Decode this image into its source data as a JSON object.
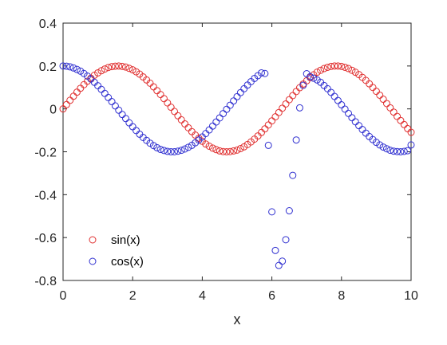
{
  "chart_data": {
    "type": "scatter",
    "xlabel": "x",
    "ylabel": "",
    "xlim": [
      0,
      10
    ],
    "ylim": [
      -0.8,
      0.4
    ],
    "xticks": [
      0,
      2,
      4,
      6,
      8,
      10
    ],
    "yticks": [
      -0.8,
      -0.6,
      -0.4,
      -0.2,
      0,
      0.2,
      0.4
    ],
    "xtick_labels": [
      "0",
      "2",
      "4",
      "6",
      "8",
      "10"
    ],
    "ytick_labels": [
      "-0.8",
      "-0.6",
      "-0.4",
      "-0.2",
      "0",
      "0.2",
      "0.4"
    ],
    "grid": false,
    "legend_position": "bottom-left",
    "marker": "open-circle",
    "series": [
      {
        "name": "sin(x)",
        "color": "#e03030",
        "x": [
          0,
          0.1,
          0.2,
          0.3,
          0.4,
          0.5,
          0.6,
          0.7,
          0.8,
          0.9,
          1,
          1.1,
          1.2,
          1.3,
          1.4,
          1.5,
          1.6,
          1.7,
          1.8,
          1.9,
          2,
          2.1,
          2.2,
          2.3,
          2.4,
          2.5,
          2.6,
          2.7,
          2.8,
          2.9,
          3,
          3.1,
          3.2,
          3.3,
          3.4,
          3.5,
          3.6,
          3.7,
          3.8,
          3.9,
          4,
          4.1,
          4.2,
          4.3,
          4.4,
          4.5,
          4.6,
          4.7,
          4.8,
          4.9,
          5,
          5.1,
          5.2,
          5.3,
          5.4,
          5.5,
          5.6,
          5.7,
          5.8,
          5.9,
          6,
          6.1,
          6.2,
          6.3,
          6.4,
          6.5,
          6.6,
          6.7,
          6.8,
          6.9,
          7,
          7.1,
          7.2,
          7.3,
          7.4,
          7.5,
          7.6,
          7.7,
          7.8,
          7.9,
          8,
          8.1,
          8.2,
          8.3,
          8.4,
          8.5,
          8.6,
          8.7,
          8.8,
          8.9,
          9,
          9.1,
          9.2,
          9.3,
          9.4,
          9.5,
          9.6,
          9.7,
          9.8,
          9.9,
          10
        ],
        "y": [
          0.0,
          0.02,
          0.04,
          0.059,
          0.078,
          0.096,
          0.113,
          0.129,
          0.143,
          0.157,
          0.168,
          0.178,
          0.186,
          0.193,
          0.197,
          0.199,
          0.2,
          0.198,
          0.195,
          0.189,
          0.182,
          0.173,
          0.162,
          0.149,
          0.135,
          0.12,
          0.103,
          0.085,
          0.067,
          0.048,
          0.028,
          0.008,
          -0.012,
          -0.032,
          -0.051,
          -0.07,
          -0.088,
          -0.106,
          -0.122,
          -0.137,
          -0.151,
          -0.164,
          -0.174,
          -0.183,
          -0.19,
          -0.196,
          -0.199,
          -0.2,
          -0.199,
          -0.196,
          -0.192,
          -0.185,
          -0.177,
          -0.166,
          -0.154,
          -0.141,
          -0.126,
          -0.11,
          -0.093,
          -0.075,
          -0.056,
          -0.037,
          -0.017,
          0.003,
          0.023,
          0.043,
          0.062,
          0.081,
          0.099,
          0.116,
          0.131,
          0.146,
          0.159,
          0.171,
          0.18,
          0.188,
          0.194,
          0.198,
          0.2,
          0.2,
          0.198,
          0.194,
          0.188,
          0.18,
          0.171,
          0.16,
          0.147,
          0.133,
          0.117,
          0.1,
          0.082,
          0.064,
          0.045,
          0.025,
          0.005,
          -0.015,
          -0.035,
          -0.054,
          -0.073,
          -0.092,
          -0.109
        ]
      },
      {
        "name": "cos(x)",
        "color": "#3030d0",
        "x": [
          0,
          0.1,
          0.2,
          0.3,
          0.4,
          0.5,
          0.6,
          0.7,
          0.8,
          0.9,
          1,
          1.1,
          1.2,
          1.3,
          1.4,
          1.5,
          1.6,
          1.7,
          1.8,
          1.9,
          2,
          2.1,
          2.2,
          2.3,
          2.4,
          2.5,
          2.6,
          2.7,
          2.8,
          2.9,
          3,
          3.1,
          3.2,
          3.3,
          3.4,
          3.5,
          3.6,
          3.7,
          3.8,
          3.9,
          4,
          4.1,
          4.2,
          4.3,
          4.4,
          4.5,
          4.6,
          4.7,
          4.8,
          4.9,
          5,
          5.1,
          5.2,
          5.3,
          5.4,
          5.5,
          5.6,
          5.7,
          5.8,
          5.9,
          6,
          6.1,
          6.2,
          6.3,
          6.4,
          6.5,
          6.6,
          6.7,
          6.8,
          6.9,
          7,
          7.1,
          7.2,
          7.3,
          7.4,
          7.5,
          7.6,
          7.7,
          7.8,
          7.9,
          8,
          8.1,
          8.2,
          8.3,
          8.4,
          8.5,
          8.6,
          8.7,
          8.8,
          8.9,
          9,
          9.1,
          9.2,
          9.3,
          9.4,
          9.5,
          9.6,
          9.7,
          9.8,
          9.9,
          10
        ],
        "y": [
          0.2,
          0.199,
          0.196,
          0.191,
          0.184,
          0.176,
          0.165,
          0.153,
          0.139,
          0.124,
          0.108,
          0.091,
          0.072,
          0.053,
          0.034,
          0.014,
          -0.006,
          -0.026,
          -0.045,
          -0.065,
          -0.083,
          -0.101,
          -0.118,
          -0.133,
          -0.147,
          -0.16,
          -0.171,
          -0.181,
          -0.189,
          -0.194,
          -0.198,
          -0.2,
          -0.2,
          -0.197,
          -0.193,
          -0.187,
          -0.179,
          -0.17,
          -0.158,
          -0.145,
          -0.131,
          -0.115,
          -0.098,
          -0.08,
          -0.061,
          -0.042,
          -0.022,
          -0.002,
          0.017,
          0.037,
          0.057,
          0.076,
          0.094,
          0.111,
          0.127,
          0.142,
          0.155,
          0.168,
          0.165,
          -0.17,
          -0.48,
          -0.66,
          -0.73,
          -0.71,
          -0.61,
          -0.475,
          -0.31,
          -0.145,
          0.005,
          0.11,
          0.164,
          0.15,
          0.143,
          0.135,
          0.124,
          0.109,
          0.094,
          0.077,
          0.058,
          0.039,
          0.019,
          -0.001,
          -0.021,
          -0.041,
          -0.06,
          -0.078,
          -0.096,
          -0.113,
          -0.129,
          -0.143,
          -0.156,
          -0.168,
          -0.178,
          -0.186,
          -0.193,
          -0.197,
          -0.199,
          -0.2,
          -0.198,
          -0.195,
          -0.168
        ]
      }
    ]
  }
}
